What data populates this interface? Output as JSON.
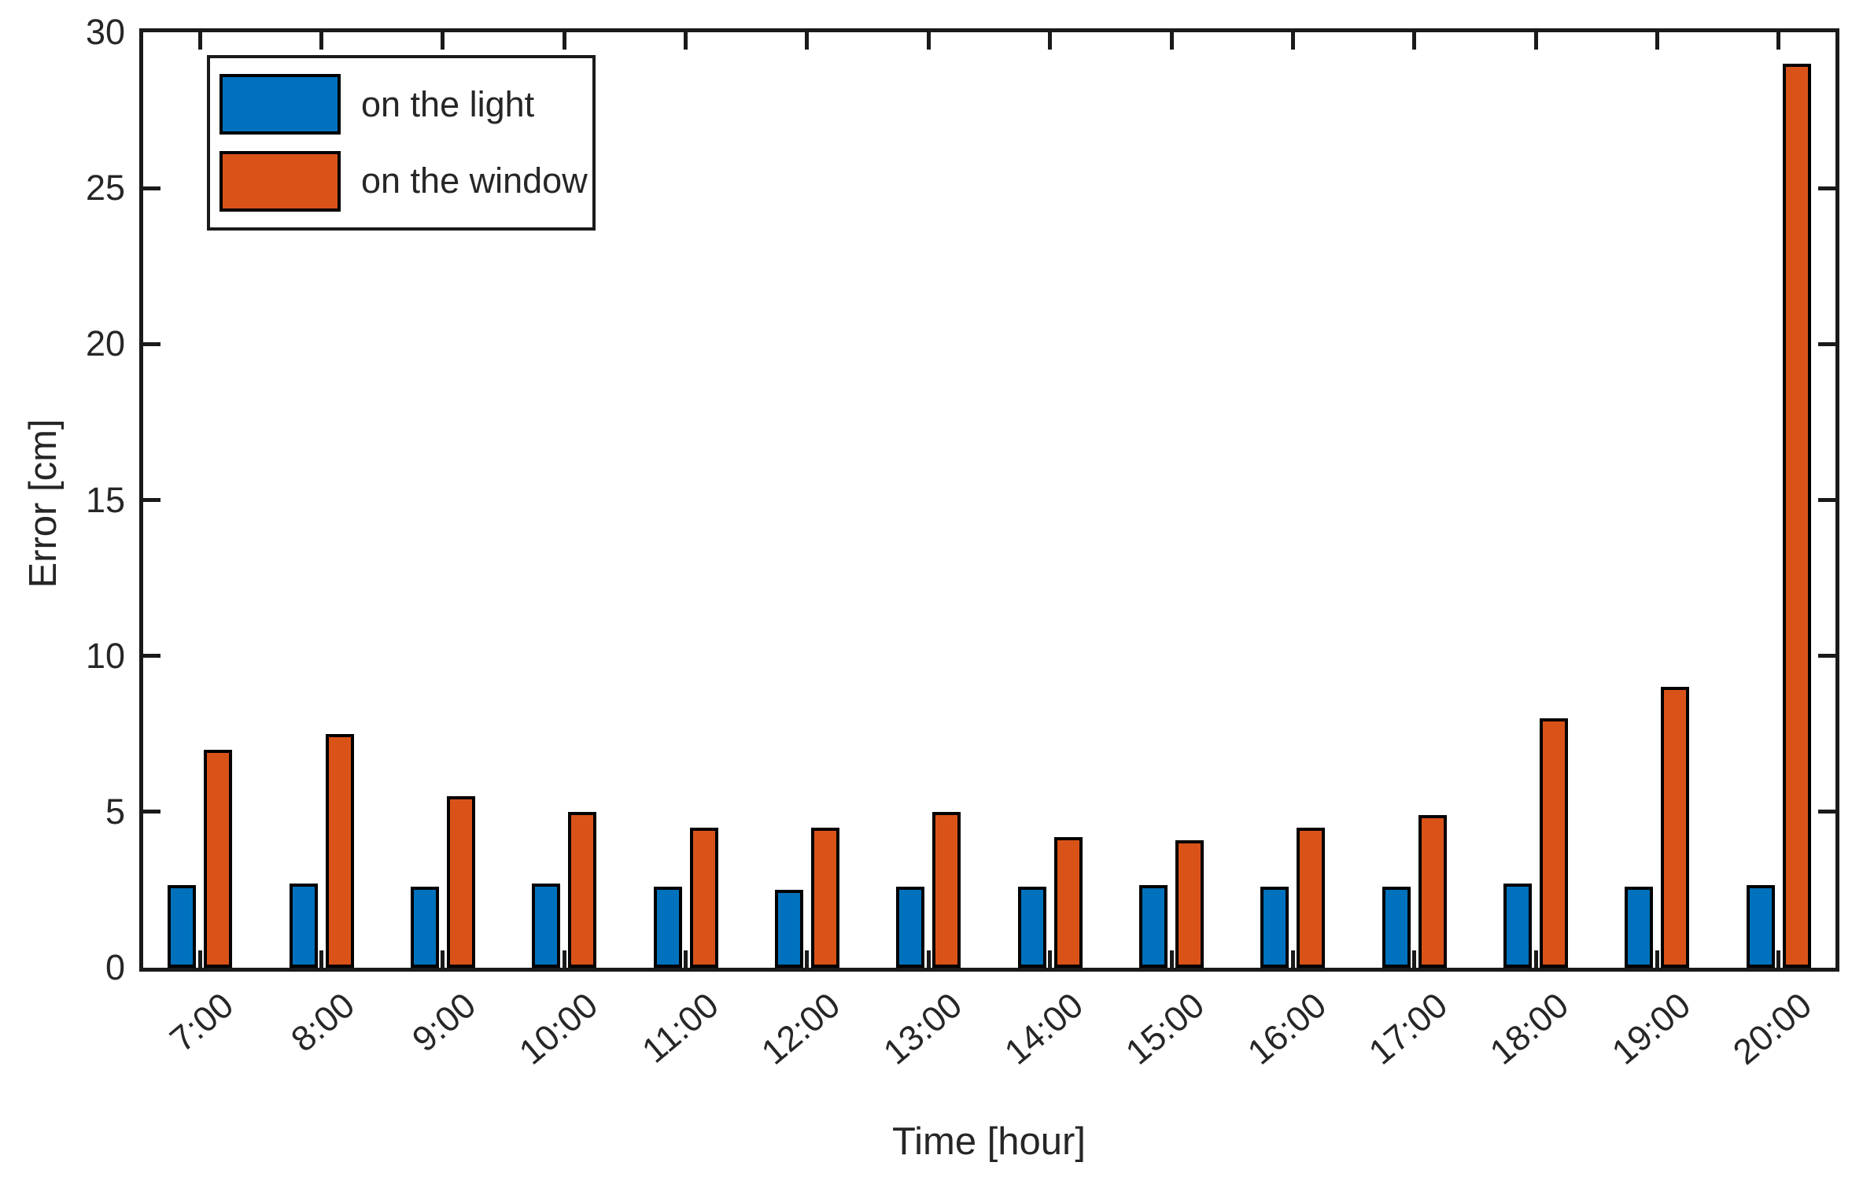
{
  "chart_data": {
    "type": "bar",
    "title": "",
    "xlabel": "Time [hour]",
    "ylabel": "Error [cm]",
    "categories": [
      "7:00",
      "8:00",
      "9:00",
      "10:00",
      "11:00",
      "12:00",
      "13:00",
      "14:00",
      "15:00",
      "16:00",
      "17:00",
      "18:00",
      "19:00",
      "20:00"
    ],
    "series": [
      {
        "name": "on the light",
        "color": "#0072BD",
        "values": [
          2.65,
          2.7,
          2.6,
          2.7,
          2.6,
          2.5,
          2.6,
          2.6,
          2.65,
          2.6,
          2.6,
          2.7,
          2.6,
          2.65
        ]
      },
      {
        "name": "on the window",
        "color": "#D95319",
        "values": [
          7.0,
          7.5,
          5.5,
          5.0,
          4.5,
          4.5,
          5.0,
          4.2,
          4.1,
          4.5,
          4.9,
          8.0,
          9.0,
          29.0
        ]
      }
    ],
    "ylim": [
      0,
      30
    ],
    "yticks": [
      0,
      5,
      10,
      15,
      20,
      25,
      30
    ],
    "grid": false,
    "box": true,
    "tick_direction": "in",
    "xtick_rotation_deg": 40,
    "legend_position": "top-left",
    "bar_edge_color": "#000000",
    "axis_color": "#1a1a1a"
  }
}
